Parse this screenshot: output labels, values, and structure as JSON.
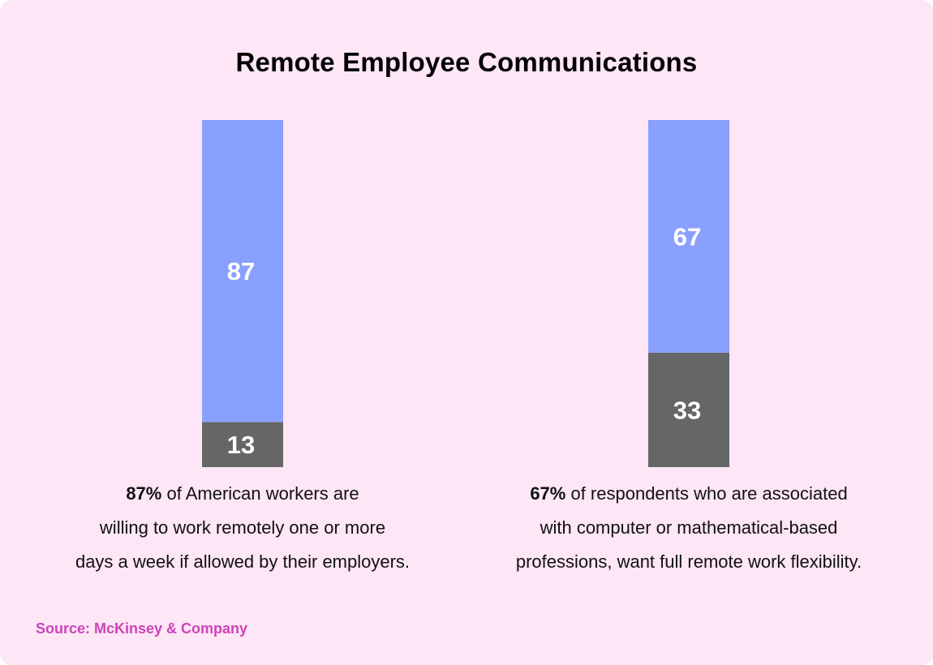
{
  "chart_data": {
    "type": "bar",
    "stacked": true,
    "title": "Remote Employee Communications",
    "categories": [
      "",
      ""
    ],
    "series": [
      {
        "values": [
          13,
          33
        ],
        "color": "#666666"
      },
      {
        "values": [
          87,
          67
        ],
        "color": "#8aa0ff"
      }
    ],
    "ylim": [
      0,
      100
    ],
    "grid": false
  },
  "captions": [
    {
      "highlight": "87%",
      "line1_rest": " of American workers are",
      "line2": "willing to work remotely one or more",
      "line3": "days a week if allowed by their employers."
    },
    {
      "highlight": "67%",
      "line1_rest": " of respondents who are associated",
      "line2": "with computer or mathematical-based",
      "line3": "professions, want full remote work flexibility."
    }
  ],
  "source": "Source: McKinsey & Company"
}
